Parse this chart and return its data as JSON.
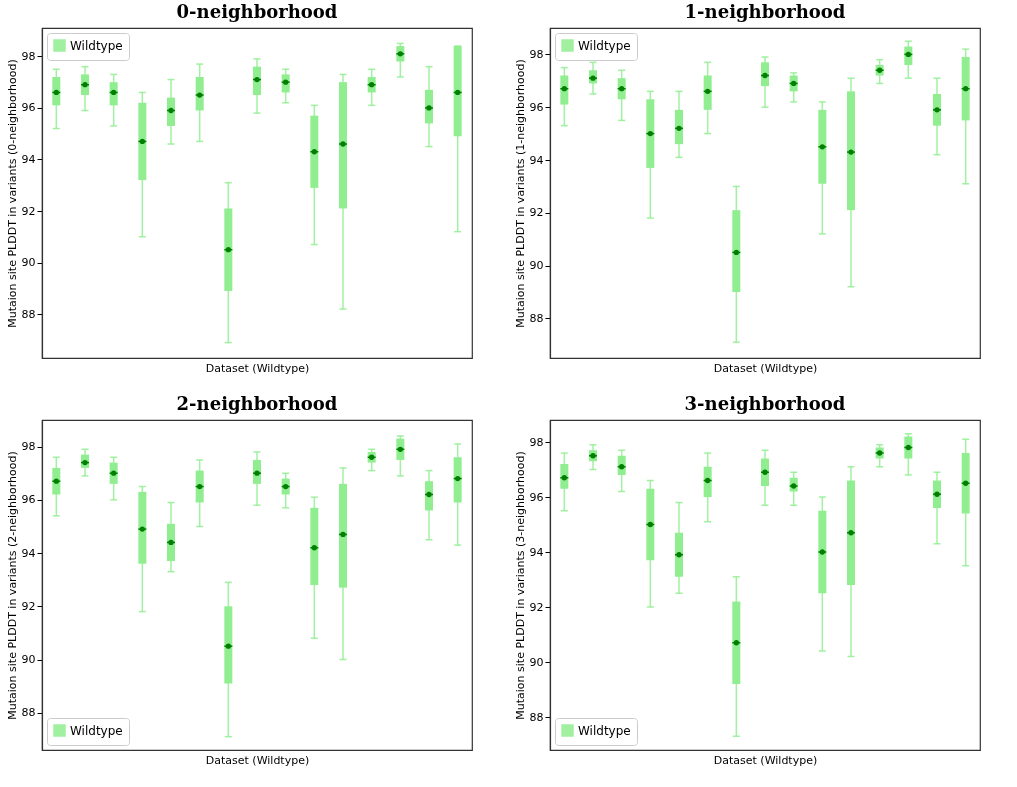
{
  "chart_data": [
    {
      "type": "box",
      "title": "0-neighborhood",
      "xlabel": "Dataset (Wildtype)",
      "ylabel": "Mutaion site PLDDT in variants (0-neighborhood)",
      "categories": [
        null,
        null,
        null,
        null,
        null,
        null,
        null,
        null,
        null,
        null,
        null,
        null,
        null,
        null,
        null
      ],
      "ylim": [
        86.3,
        99.1
      ],
      "yticks": [
        88,
        90,
        92,
        94,
        96,
        98
      ],
      "tick_labels": "y",
      "legend": "top left",
      "series": [
        {
          "name": "Wildtype",
          "color": "#90ee90",
          "boxes": [
            {
              "low": 95.2,
              "q1": 96.1,
              "median": 96.6,
              "q3": 97.2,
              "high": 97.5
            },
            {
              "low": 95.9,
              "q1": 96.5,
              "median": 96.9,
              "q3": 97.3,
              "high": 97.6
            },
            {
              "low": 95.3,
              "q1": 96.1,
              "median": 96.6,
              "q3": 97.0,
              "high": 97.3
            },
            {
              "low": 91.0,
              "q1": 93.2,
              "median": 94.7,
              "q3": 96.2,
              "high": 96.6
            },
            {
              "low": 94.6,
              "q1": 95.3,
              "median": 95.9,
              "q3": 96.4,
              "high": 97.1
            },
            {
              "low": 94.7,
              "q1": 95.9,
              "median": 96.5,
              "q3": 97.2,
              "high": 97.7
            },
            {
              "low": 86.9,
              "q1": 88.9,
              "median": 90.5,
              "q3": 92.1,
              "high": 93.1
            },
            {
              "low": 95.8,
              "q1": 96.5,
              "median": 97.1,
              "q3": 97.6,
              "high": 97.9
            },
            {
              "low": 96.2,
              "q1": 96.6,
              "median": 97.0,
              "q3": 97.3,
              "high": 97.5
            },
            {
              "low": 90.7,
              "q1": 92.9,
              "median": 94.3,
              "q3": 95.7,
              "high": 96.1
            },
            {
              "low": 88.2,
              "q1": 92.1,
              "median": 94.6,
              "q3": 97.0,
              "high": 97.3
            },
            {
              "low": 96.1,
              "q1": 96.6,
              "median": 96.9,
              "q3": 97.2,
              "high": 97.5
            },
            {
              "low": 97.2,
              "q1": 97.8,
              "median": 98.1,
              "q3": 98.4,
              "high": 98.5
            },
            {
              "low": 94.5,
              "q1": 95.4,
              "median": 96.0,
              "q3": 96.7,
              "high": 97.6
            },
            {
              "low": 91.2,
              "q1": 94.9,
              "median": 96.6,
              "q3": 98.4,
              "high": 98.4
            }
          ]
        }
      ]
    },
    {
      "type": "box",
      "title": "1-neighborhood",
      "xlabel": "Dataset (Wildtype)",
      "ylabel": "Mutaion site PLDDT in variants (1-neighborhood)",
      "categories": [
        null,
        null,
        null,
        null,
        null,
        null,
        null,
        null,
        null,
        null,
        null,
        null,
        null,
        null,
        null
      ],
      "ylim": [
        86.5,
        99.0
      ],
      "yticks": [
        88,
        90,
        92,
        94,
        96,
        98
      ],
      "tick_labels": "y",
      "legend": "top left",
      "series": [
        {
          "name": "Wildtype",
          "color": "#90ee90",
          "boxes": [
            {
              "low": 95.3,
              "q1": 96.1,
              "median": 96.7,
              "q3": 97.2,
              "high": 97.5
            },
            {
              "low": 96.5,
              "q1": 96.9,
              "median": 97.1,
              "q3": 97.4,
              "high": 97.7
            },
            {
              "low": 95.5,
              "q1": 96.3,
              "median": 96.7,
              "q3": 97.1,
              "high": 97.4
            },
            {
              "low": 91.8,
              "q1": 93.7,
              "median": 95.0,
              "q3": 96.3,
              "high": 96.6
            },
            {
              "low": 94.1,
              "q1": 94.6,
              "median": 95.2,
              "q3": 95.9,
              "high": 96.6
            },
            {
              "low": 95.0,
              "q1": 95.9,
              "median": 96.6,
              "q3": 97.2,
              "high": 97.7
            },
            {
              "low": 87.1,
              "q1": 89.0,
              "median": 90.5,
              "q3": 92.1,
              "high": 93.0
            },
            {
              "low": 96.0,
              "q1": 96.8,
              "median": 97.2,
              "q3": 97.7,
              "high": 97.9
            },
            {
              "low": 96.2,
              "q1": 96.6,
              "median": 96.9,
              "q3": 97.2,
              "high": 97.3
            },
            {
              "low": 91.2,
              "q1": 93.1,
              "median": 94.5,
              "q3": 95.9,
              "high": 96.2
            },
            {
              "low": 89.2,
              "q1": 92.1,
              "median": 94.3,
              "q3": 96.6,
              "high": 97.1
            },
            {
              "low": 96.9,
              "q1": 97.2,
              "median": 97.4,
              "q3": 97.6,
              "high": 97.8
            },
            {
              "low": 97.1,
              "q1": 97.6,
              "median": 98.0,
              "q3": 98.3,
              "high": 98.5
            },
            {
              "low": 94.2,
              "q1": 95.3,
              "median": 95.9,
              "q3": 96.5,
              "high": 97.1
            },
            {
              "low": 93.1,
              "q1": 95.5,
              "median": 96.7,
              "q3": 97.9,
              "high": 98.2
            }
          ]
        }
      ]
    },
    {
      "type": "box",
      "title": "2-neighborhood",
      "xlabel": "Dataset (Wildtype)",
      "ylabel": "Mutaion site PLDDT in variants (2-neighborhood)",
      "categories": [
        null,
        null,
        null,
        null,
        null,
        null,
        null,
        null,
        null,
        null,
        null,
        null,
        null,
        null,
        null
      ],
      "ylim": [
        86.6,
        99.0
      ],
      "yticks": [
        88,
        90,
        92,
        94,
        96,
        98
      ],
      "tick_labels": "y",
      "legend": "bottom left",
      "series": [
        {
          "name": "Wildtype",
          "color": "#90ee90",
          "boxes": [
            {
              "low": 95.4,
              "q1": 96.2,
              "median": 96.7,
              "q3": 97.2,
              "high": 97.6
            },
            {
              "low": 96.9,
              "q1": 97.2,
              "median": 97.4,
              "q3": 97.7,
              "high": 97.9
            },
            {
              "low": 96.0,
              "q1": 96.6,
              "median": 97.0,
              "q3": 97.4,
              "high": 97.6
            },
            {
              "low": 91.8,
              "q1": 93.6,
              "median": 94.9,
              "q3": 96.3,
              "high": 96.5
            },
            {
              "low": 93.3,
              "q1": 93.7,
              "median": 94.4,
              "q3": 95.1,
              "high": 95.9
            },
            {
              "low": 95.0,
              "q1": 95.9,
              "median": 96.5,
              "q3": 97.1,
              "high": 97.5
            },
            {
              "low": 87.1,
              "q1": 89.1,
              "median": 90.5,
              "q3": 92.0,
              "high": 92.9
            },
            {
              "low": 95.8,
              "q1": 96.6,
              "median": 97.0,
              "q3": 97.5,
              "high": 97.8
            },
            {
              "low": 95.7,
              "q1": 96.2,
              "median": 96.5,
              "q3": 96.8,
              "high": 97.0
            },
            {
              "low": 90.8,
              "q1": 92.8,
              "median": 94.2,
              "q3": 95.7,
              "high": 96.1
            },
            {
              "low": 90.0,
              "q1": 92.7,
              "median": 94.7,
              "q3": 96.6,
              "high": 97.2
            },
            {
              "low": 97.1,
              "q1": 97.4,
              "median": 97.6,
              "q3": 97.8,
              "high": 97.9
            },
            {
              "low": 96.9,
              "q1": 97.5,
              "median": 97.9,
              "q3": 98.3,
              "high": 98.4
            },
            {
              "low": 94.5,
              "q1": 95.6,
              "median": 96.2,
              "q3": 96.7,
              "high": 97.1
            },
            {
              "low": 94.3,
              "q1": 95.9,
              "median": 96.8,
              "q3": 97.6,
              "high": 98.1
            }
          ]
        }
      ]
    },
    {
      "type": "box",
      "title": "3-neighborhood",
      "xlabel": "Dataset (Wildtype)",
      "ylabel": "Mutaion site PLDDT in variants (3-neighborhood)",
      "categories": [
        null,
        null,
        null,
        null,
        null,
        null,
        null,
        null,
        null,
        null,
        null,
        null,
        null,
        null,
        null
      ],
      "ylim": [
        86.8,
        98.8
      ],
      "yticks": [
        88,
        90,
        92,
        94,
        96,
        98
      ],
      "tick_labels": "y",
      "legend": "bottom left",
      "series": [
        {
          "name": "Wildtype",
          "color": "#90ee90",
          "boxes": [
            {
              "low": 95.5,
              "q1": 96.3,
              "median": 96.7,
              "q3": 97.2,
              "high": 97.6
            },
            {
              "low": 97.0,
              "q1": 97.3,
              "median": 97.5,
              "q3": 97.7,
              "high": 97.9
            },
            {
              "low": 96.2,
              "q1": 96.8,
              "median": 97.1,
              "q3": 97.5,
              "high": 97.7
            },
            {
              "low": 92.0,
              "q1": 93.7,
              "median": 95.0,
              "q3": 96.3,
              "high": 96.6
            },
            {
              "low": 92.5,
              "q1": 93.1,
              "median": 93.9,
              "q3": 94.7,
              "high": 95.8
            },
            {
              "low": 95.1,
              "q1": 96.0,
              "median": 96.6,
              "q3": 97.1,
              "high": 97.6
            },
            {
              "low": 87.3,
              "q1": 89.2,
              "median": 90.7,
              "q3": 92.2,
              "high": 93.1
            },
            {
              "low": 95.7,
              "q1": 96.4,
              "median": 96.9,
              "q3": 97.4,
              "high": 97.7
            },
            {
              "low": 95.7,
              "q1": 96.2,
              "median": 96.4,
              "q3": 96.7,
              "high": 96.9
            },
            {
              "low": 90.4,
              "q1": 92.5,
              "median": 94.0,
              "q3": 95.5,
              "high": 96.0
            },
            {
              "low": 90.2,
              "q1": 92.8,
              "median": 94.7,
              "q3": 96.6,
              "high": 97.1
            },
            {
              "low": 97.1,
              "q1": 97.4,
              "median": 97.6,
              "q3": 97.8,
              "high": 97.9
            },
            {
              "low": 96.8,
              "q1": 97.4,
              "median": 97.8,
              "q3": 98.2,
              "high": 98.3
            },
            {
              "low": 94.3,
              "q1": 95.6,
              "median": 96.1,
              "q3": 96.6,
              "high": 96.9
            },
            {
              "low": 93.5,
              "q1": 95.4,
              "median": 96.5,
              "q3": 97.6,
              "high": 98.1
            }
          ]
        }
      ]
    }
  ]
}
